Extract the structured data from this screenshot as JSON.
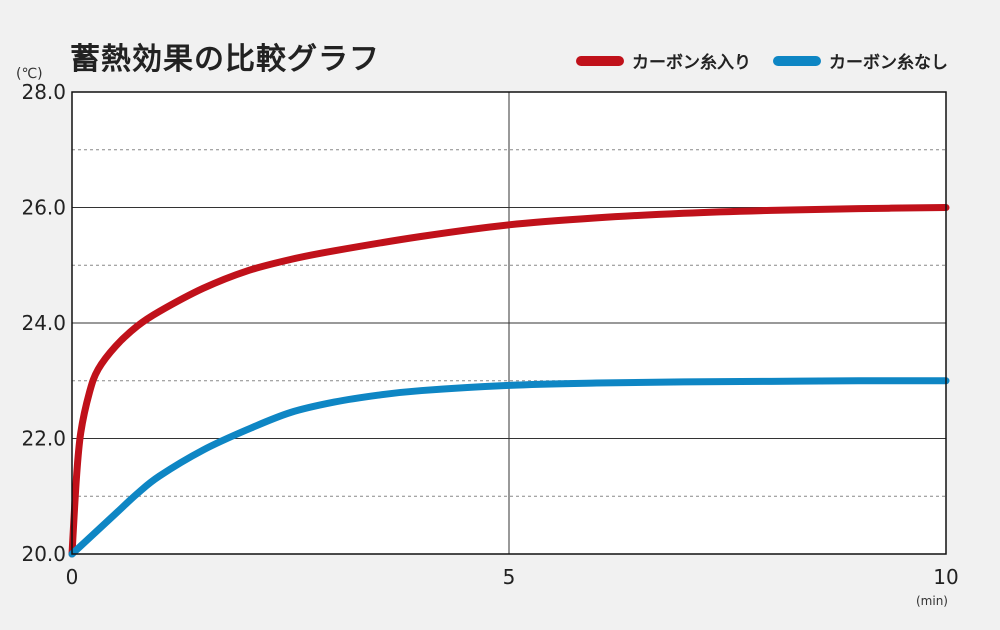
{
  "chart_data": {
    "type": "line",
    "title": "蓄熱効果の比較グラフ",
    "ylabel": "(℃)",
    "xlabel": "(min)",
    "xlim": [
      0,
      10
    ],
    "ylim": [
      20.0,
      28.0
    ],
    "x_ticks": [
      "0",
      "5",
      "10"
    ],
    "y_ticks": [
      "28.0",
      "26.0",
      "24.0",
      "22.0",
      "20.0"
    ],
    "grid": true,
    "legend": "top-right",
    "series": [
      {
        "name": "カーボン糸入り",
        "color": "#c0111a",
        "x": [
          0,
          0.05,
          0.1,
          0.2,
          0.3,
          0.5,
          0.75,
          1,
          1.5,
          2,
          2.5,
          3,
          4,
          5,
          6,
          7,
          8,
          9,
          10
        ],
        "y": [
          20.0,
          21.3,
          22.1,
          22.8,
          23.2,
          23.6,
          23.95,
          24.2,
          24.6,
          24.9,
          25.1,
          25.25,
          25.5,
          25.7,
          25.82,
          25.9,
          25.95,
          25.98,
          26.0
        ]
      },
      {
        "name": "カーボン糸なし",
        "color": "#0e86c4",
        "x": [
          0,
          0.25,
          0.5,
          0.75,
          1,
          1.5,
          2,
          2.5,
          3,
          3.5,
          4,
          5,
          6,
          7,
          8,
          9,
          10
        ],
        "y": [
          20.0,
          20.35,
          20.7,
          21.05,
          21.35,
          21.8,
          22.15,
          22.45,
          22.63,
          22.75,
          22.83,
          22.92,
          22.96,
          22.98,
          22.99,
          23.0,
          23.0
        ]
      }
    ]
  }
}
